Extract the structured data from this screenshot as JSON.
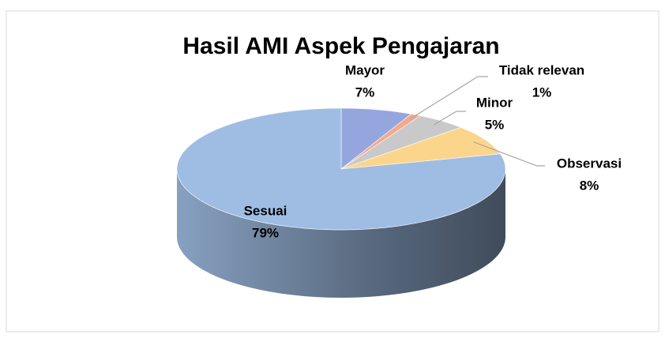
{
  "chart_data": {
    "type": "pie",
    "title": "Hasil AMI Aspek Pengajaran",
    "categories": [
      "Mayor",
      "Tidak relevan",
      "Minor",
      "Observasi",
      "Sesuai"
    ],
    "values": [
      7,
      1,
      5,
      8,
      79
    ],
    "value_labels": [
      "7%",
      "1%",
      "5%",
      "8%",
      "79%"
    ],
    "colors": [
      "#95a6de",
      "#f4a98a",
      "#c9c9c9",
      "#fcd58c",
      "#9fbde3"
    ]
  }
}
